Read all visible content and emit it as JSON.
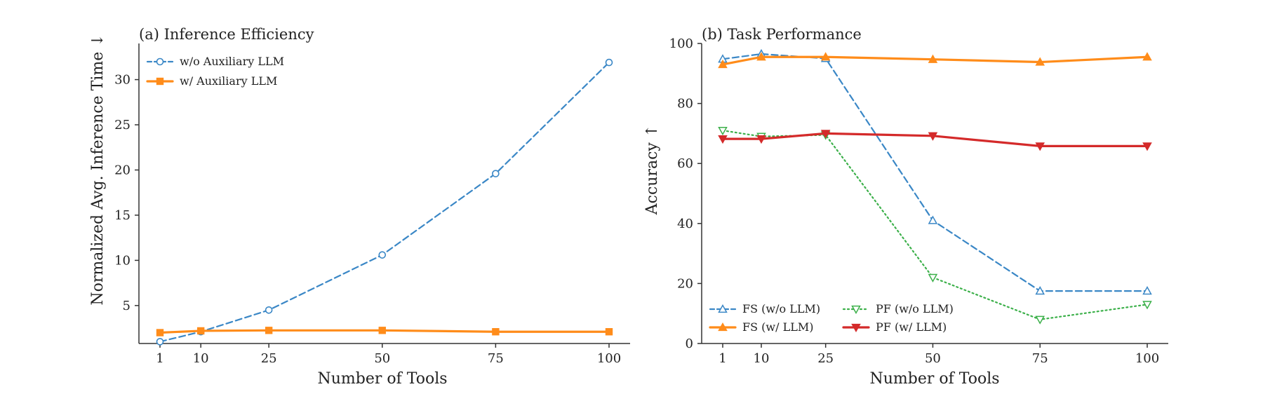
{
  "chart_data": [
    {
      "type": "line",
      "title": "(a) Inference Efficiency",
      "xlabel": "Number of Tools",
      "ylabel": "Normalized Avg. Inference Time ↓",
      "x": [
        1,
        10,
        25,
        50,
        75,
        100
      ],
      "x_ticks": [
        "1",
        "10",
        "25",
        "50",
        "75",
        "100"
      ],
      "y_ticks": [
        "5",
        "10",
        "15",
        "20",
        "25",
        "30"
      ],
      "ylim": [
        0.8,
        34
      ],
      "grid": false,
      "legend": "top-left",
      "series": [
        {
          "name": "w/o Auxiliary LLM",
          "values": [
            1.0,
            2.1,
            4.5,
            10.6,
            19.6,
            31.9
          ],
          "color": "#3a87c6",
          "style": "dashed",
          "marker": "circle-open"
        },
        {
          "name": "w/ Auxiliary LLM",
          "values": [
            2.0,
            2.2,
            2.25,
            2.25,
            2.1,
            2.1
          ],
          "color": "#ff8c1a",
          "style": "solid",
          "marker": "square-filled"
        }
      ]
    },
    {
      "type": "line",
      "title": "(b) Task Performance",
      "xlabel": "Number of Tools",
      "ylabel": "Accuracy ↑",
      "x": [
        1,
        10,
        25,
        50,
        75,
        100
      ],
      "x_ticks": [
        "1",
        "10",
        "25",
        "50",
        "75",
        "100"
      ],
      "y_ticks": [
        "0",
        "20",
        "40",
        "60",
        "80",
        "100"
      ],
      "ylim": [
        0,
        100
      ],
      "grid": false,
      "legend": "bottom-left",
      "series": [
        {
          "name": "FS (w/o LLM)",
          "values": [
            94.8,
            96.5,
            95.0,
            41.0,
            17.5,
            17.5
          ],
          "color": "#3a87c6",
          "style": "dashed",
          "marker": "triangle-up-open"
        },
        {
          "name": "FS (w/ LLM)",
          "values": [
            93.0,
            95.5,
            95.5,
            94.7,
            93.8,
            95.5
          ],
          "color": "#ff8c1a",
          "style": "solid",
          "marker": "triangle-up-filled"
        },
        {
          "name": "PF (w/o LLM)",
          "values": [
            71.0,
            69.0,
            69.5,
            22.0,
            8.0,
            13.0
          ],
          "color": "#3cb04a",
          "style": "dotted",
          "marker": "triangle-down-open"
        },
        {
          "name": "PF (w/ LLM)",
          "values": [
            68.2,
            68.2,
            70.0,
            69.2,
            65.8,
            65.8
          ],
          "color": "#d42a2a",
          "style": "solid",
          "marker": "triangle-down-filled"
        }
      ]
    }
  ]
}
